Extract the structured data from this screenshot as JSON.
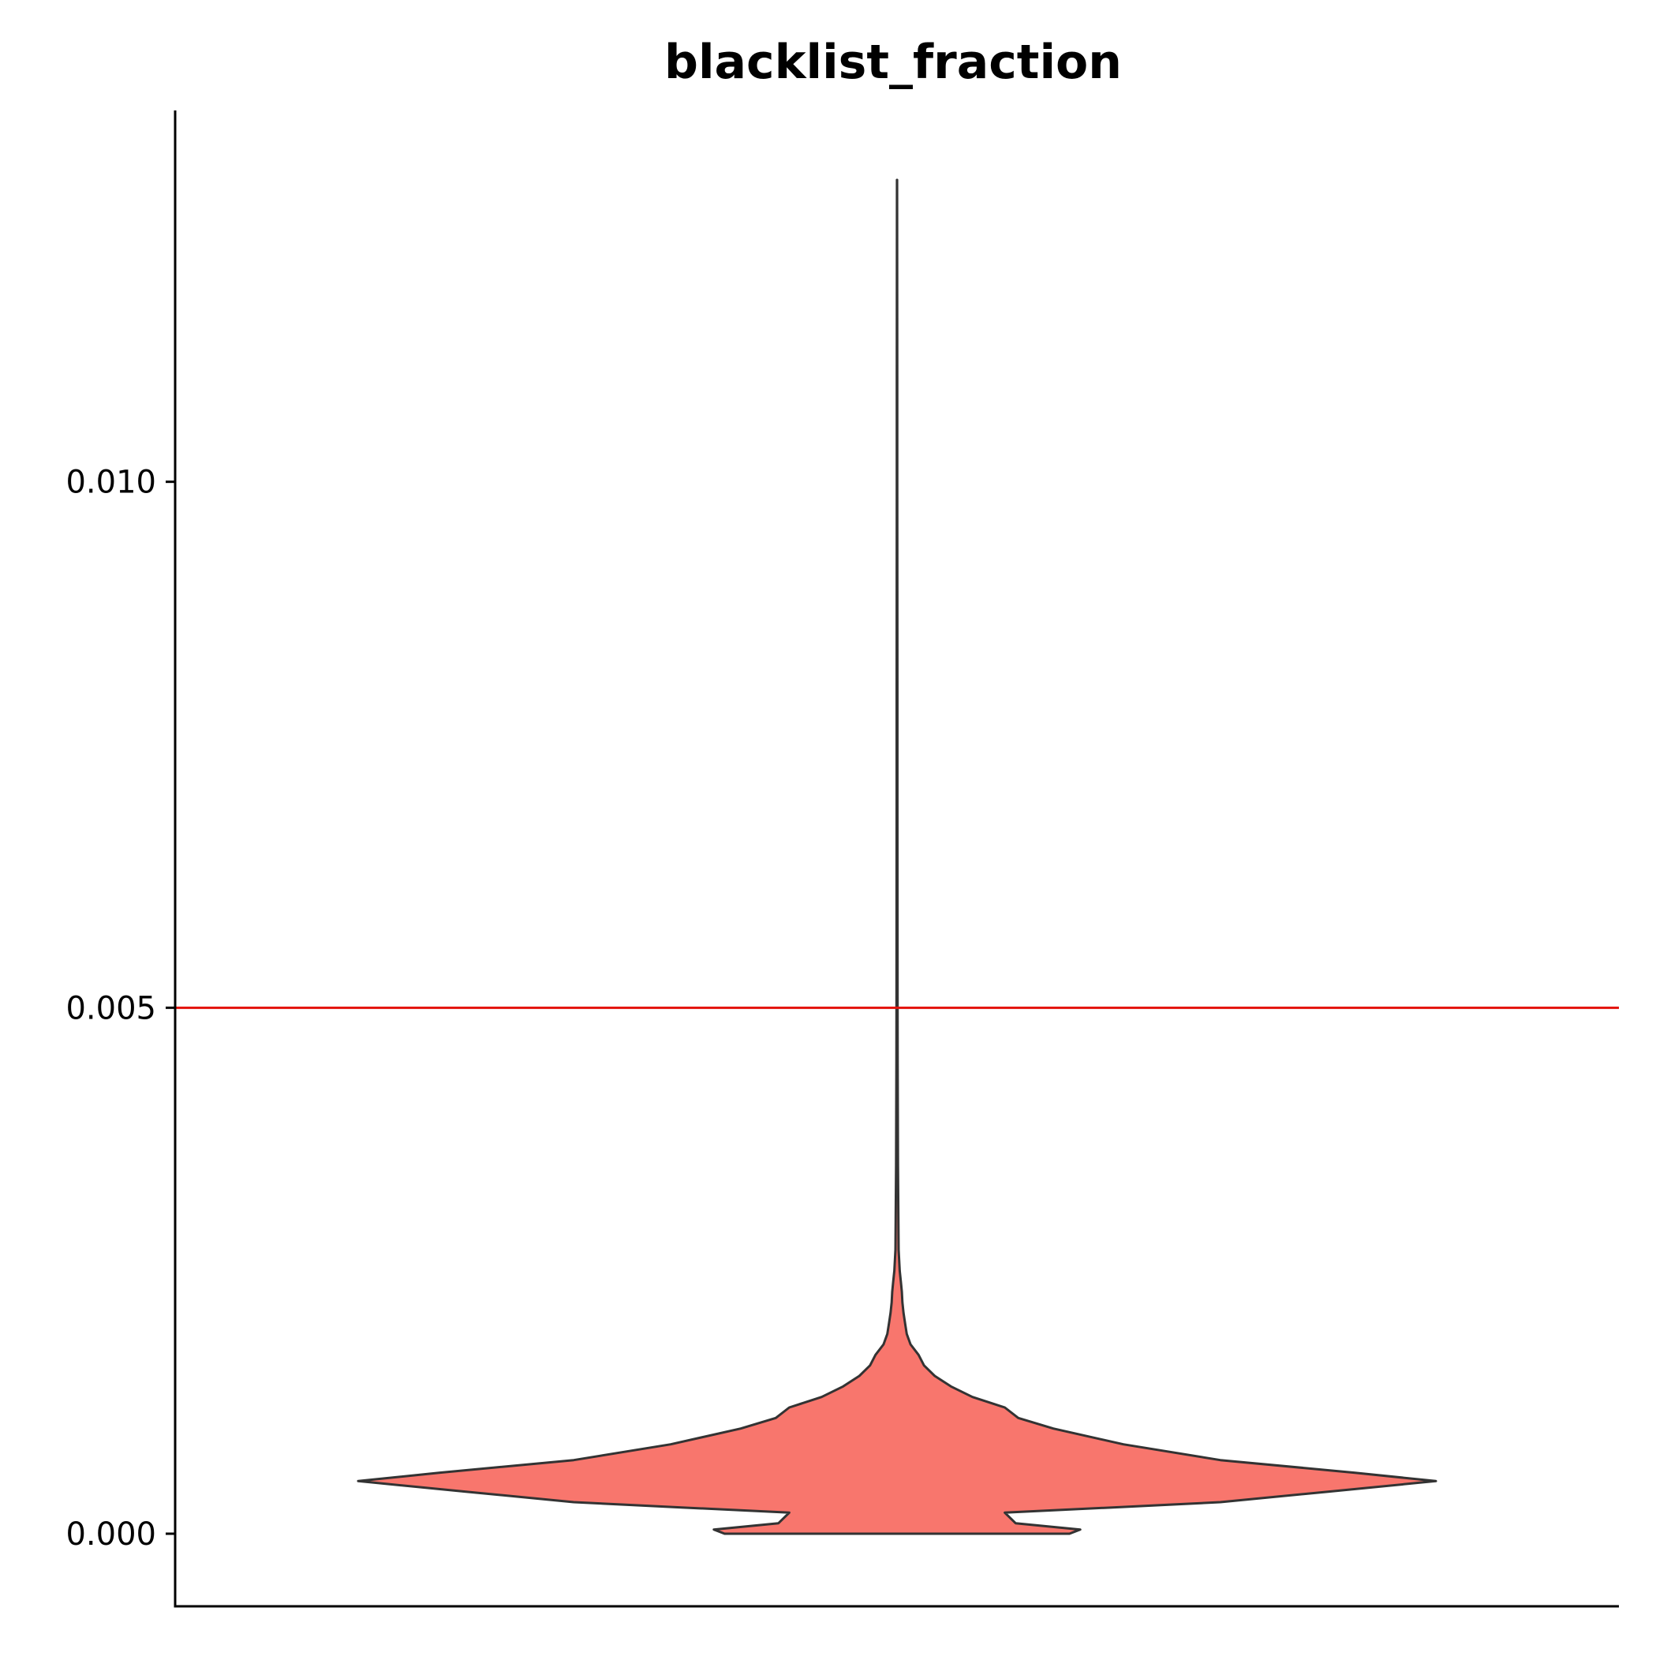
{
  "chart_data": {
    "type": "violin",
    "title": "blacklist_fraction",
    "xlabel": "",
    "ylabel": "",
    "ylim": [
      -0.00069,
      0.01353
    ],
    "yticks": [
      0.0,
      0.005,
      0.01
    ],
    "ytick_labels": [
      "0.000",
      "0.005",
      "0.010"
    ],
    "grid": false,
    "legend": "none",
    "threshold_line": {
      "y": 0.005,
      "color": "#e3120b"
    },
    "violin": {
      "fill": "#f8766d",
      "stroke": "#333333",
      "min": 0.0,
      "max": 0.01287,
      "density_profile": {
        "y": [
          0.0,
          4e-05,
          0.0001,
          0.0002,
          0.00025,
          0.0003,
          0.0004,
          0.0005,
          0.00058,
          0.0007,
          0.00085,
          0.001,
          0.0011,
          0.0012,
          0.0013,
          0.0014,
          0.0015,
          0.0016,
          0.0017,
          0.0018,
          0.0019,
          0.002,
          0.0021,
          0.0022,
          0.0023,
          0.0024,
          0.0025,
          0.0026,
          0.0027,
          0.0028,
          0.003,
          0.0033,
          0.0035,
          0.004,
          0.0045,
          0.005,
          0.006,
          0.007,
          0.008,
          0.009,
          0.01,
          0.011,
          0.012,
          0.01287
        ],
        "half_width": [
          0.32,
          0.34,
          0.22,
          0.2,
          0.4,
          0.6,
          0.8,
          1.0,
          0.85,
          0.6,
          0.42,
          0.29,
          0.225,
          0.2,
          0.14,
          0.1,
          0.07,
          0.05,
          0.04,
          0.025,
          0.018,
          0.015,
          0.012,
          0.01,
          0.009,
          0.007,
          0.005,
          0.004,
          0.003,
          0.0028,
          0.0025,
          0.002,
          0.0018,
          0.0015,
          0.0012,
          0.001,
          0.0009,
          0.0008,
          0.0007,
          0.0006,
          0.0005,
          0.0004,
          0.0003,
          0.0002
        ]
      }
    }
  }
}
